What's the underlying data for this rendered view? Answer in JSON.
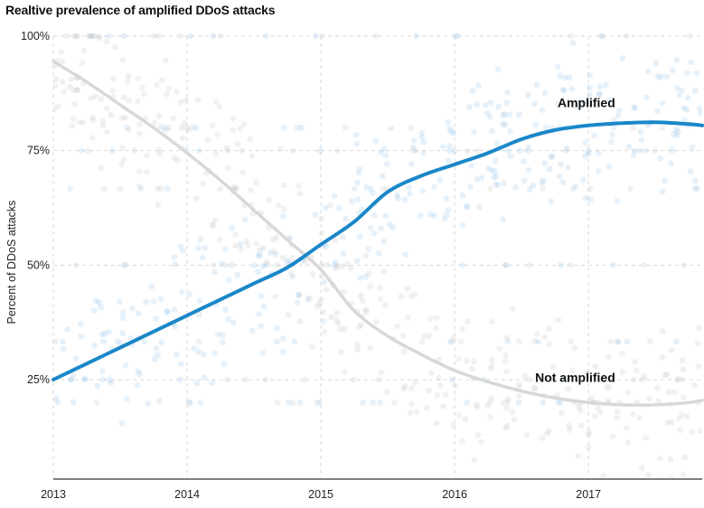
{
  "chart_data": {
    "type": "line",
    "title": "Realtive prevalence of amplified DDoS attacks",
    "xlabel": "",
    "ylabel": "Percent of DDoS attacks",
    "xlim": [
      2013,
      2017.85
    ],
    "ylim": [
      0.03,
      1.0
    ],
    "x_ticks": [
      2013,
      2014,
      2015,
      2016,
      2017
    ],
    "x_tick_labels": [
      "2013",
      "2014",
      "2015",
      "2016",
      "2017"
    ],
    "y_ticks": [
      0.25,
      0.5,
      0.75,
      1.0
    ],
    "y_tick_labels": [
      "25%",
      "50%",
      "75%",
      "100%"
    ],
    "grid": true,
    "scatter_points_note": "",
    "series": [
      {
        "name": "Amplified",
        "color": "#1a87c8",
        "x": [
          2013,
          2013.25,
          2013.5,
          2013.75,
          2014,
          2014.25,
          2014.5,
          2014.75,
          2015,
          2015.25,
          2015.5,
          2015.75,
          2016,
          2016.25,
          2016.5,
          2016.75,
          2017,
          2017.25,
          2017.5,
          2017.75,
          2017.85
        ],
        "values": [
          0.25,
          0.285,
          0.32,
          0.355,
          0.39,
          0.425,
          0.46,
          0.495,
          0.545,
          0.595,
          0.66,
          0.695,
          0.72,
          0.745,
          0.775,
          0.795,
          0.805,
          0.81,
          0.812,
          0.808,
          0.805
        ]
      },
      {
        "name": "Not amplified",
        "color": "#d8d8d8",
        "x": [
          2013,
          2013.25,
          2013.5,
          2013.75,
          2014,
          2014.25,
          2014.5,
          2014.75,
          2015,
          2015.25,
          2015.5,
          2015.75,
          2016,
          2016.25,
          2016.5,
          2016.75,
          2017,
          2017.25,
          2017.5,
          2017.75,
          2017.85
        ],
        "values": [
          0.945,
          0.9,
          0.85,
          0.8,
          0.745,
          0.685,
          0.62,
          0.555,
          0.49,
          0.4,
          0.345,
          0.305,
          0.27,
          0.245,
          0.225,
          0.21,
          0.2,
          0.195,
          0.195,
          0.2,
          0.205
        ]
      }
    ],
    "scatter_colors": {
      "blue": "#9cc9ea",
      "grey": "#c8c8c8"
    },
    "axis_color": "#555555",
    "grid_color": "#d9d9d9"
  }
}
